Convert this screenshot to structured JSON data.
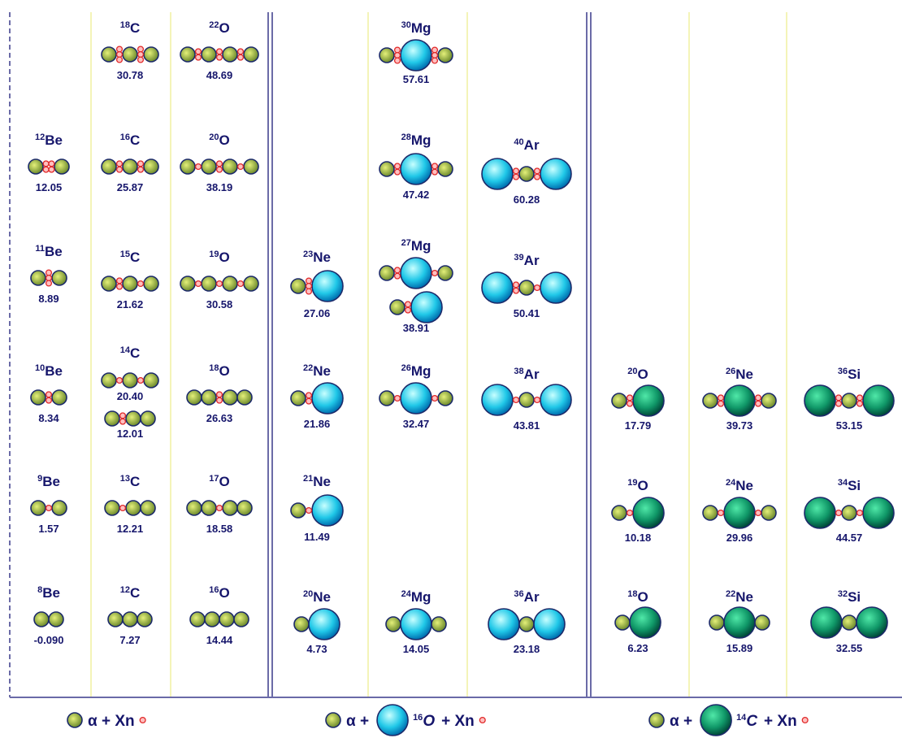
{
  "columns": [
    {
      "items": [
        {
          "mass": "12",
          "element": "Be",
          "values": [
            "12.05"
          ]
        },
        {
          "mass": "11",
          "element": "Be",
          "values": [
            "8.89"
          ]
        },
        {
          "mass": "10",
          "element": "Be",
          "values": [
            "8.34"
          ]
        },
        {
          "mass": "9",
          "element": "Be",
          "values": [
            "1.57"
          ]
        },
        {
          "mass": "8",
          "element": "Be",
          "values": [
            "-0.090"
          ]
        }
      ]
    },
    {
      "items": [
        {
          "mass": "18",
          "element": "C",
          "values": [
            "30.78"
          ]
        },
        {
          "mass": "16",
          "element": "C",
          "values": [
            "25.87"
          ]
        },
        {
          "mass": "15",
          "element": "C",
          "values": [
            "21.62"
          ]
        },
        {
          "mass": "14",
          "element": "C",
          "values": [
            "20.40",
            "12.01"
          ]
        },
        {
          "mass": "13",
          "element": "C",
          "values": [
            "12.21"
          ]
        },
        {
          "mass": "12",
          "element": "C",
          "values": [
            "7.27"
          ]
        }
      ]
    },
    {
      "items": [
        {
          "mass": "22",
          "element": "O",
          "values": [
            "48.69"
          ]
        },
        {
          "mass": "20",
          "element": "O",
          "values": [
            "38.19"
          ]
        },
        {
          "mass": "19",
          "element": "O",
          "values": [
            "30.58"
          ]
        },
        {
          "mass": "18",
          "element": "O",
          "values": [
            "26.63"
          ]
        },
        {
          "mass": "17",
          "element": "O",
          "values": [
            "18.58"
          ]
        },
        {
          "mass": "16",
          "element": "O",
          "values": [
            "14.44"
          ]
        }
      ]
    },
    {
      "items": [
        {
          "mass": "23",
          "element": "Ne",
          "values": [
            "27.06"
          ]
        },
        {
          "mass": "22",
          "element": "Ne",
          "values": [
            "21.86"
          ]
        },
        {
          "mass": "21",
          "element": "Ne",
          "values": [
            "11.49"
          ]
        },
        {
          "mass": "20",
          "element": "Ne",
          "values": [
            "4.73"
          ]
        }
      ]
    },
    {
      "items": [
        {
          "mass": "30",
          "element": "Mg",
          "values": [
            "57.61"
          ]
        },
        {
          "mass": "28",
          "element": "Mg",
          "values": [
            "47.42"
          ]
        },
        {
          "mass": "27",
          "element": "Mg",
          "values": [
            "38.91"
          ]
        },
        {
          "mass": "26",
          "element": "Mg",
          "values": [
            "32.47"
          ]
        },
        {
          "mass": "24",
          "element": "Mg",
          "values": [
            "14.05"
          ]
        }
      ]
    },
    {
      "items": [
        {
          "mass": "40",
          "element": "Ar",
          "values": [
            "60.28"
          ]
        },
        {
          "mass": "39",
          "element": "Ar",
          "values": [
            "50.41"
          ]
        },
        {
          "mass": "38",
          "element": "Ar",
          "values": [
            "43.81"
          ]
        },
        {
          "mass": "36",
          "element": "Ar",
          "values": [
            "23.18"
          ]
        }
      ]
    },
    {
      "items": [
        {
          "mass": "20",
          "element": "O",
          "values": [
            "17.79"
          ]
        },
        {
          "mass": "19",
          "element": "O",
          "values": [
            "10.18"
          ]
        },
        {
          "mass": "18",
          "element": "O",
          "values": [
            "6.23"
          ]
        }
      ]
    },
    {
      "items": [
        {
          "mass": "26",
          "element": "Ne",
          "values": [
            "39.73"
          ]
        },
        {
          "mass": "24",
          "element": "Ne",
          "values": [
            "29.96"
          ]
        },
        {
          "mass": "22",
          "element": "Ne",
          "values": [
            "15.89"
          ]
        }
      ]
    },
    {
      "items": [
        {
          "mass": "36",
          "element": "Si",
          "values": [
            "53.15"
          ]
        },
        {
          "mass": "34",
          "element": "Si",
          "values": [
            "44.57"
          ]
        },
        {
          "mass": "32",
          "element": "Si",
          "values": [
            "32.55"
          ]
        }
      ]
    }
  ],
  "legend": [
    {
      "text": "α + Xn"
    },
    {
      "text": "α +",
      "mass": "16",
      "element": "O",
      "tail": "+ Xn"
    },
    {
      "text": "α +",
      "mass": "14",
      "element": "C",
      "tail": "+ Xn"
    }
  ]
}
